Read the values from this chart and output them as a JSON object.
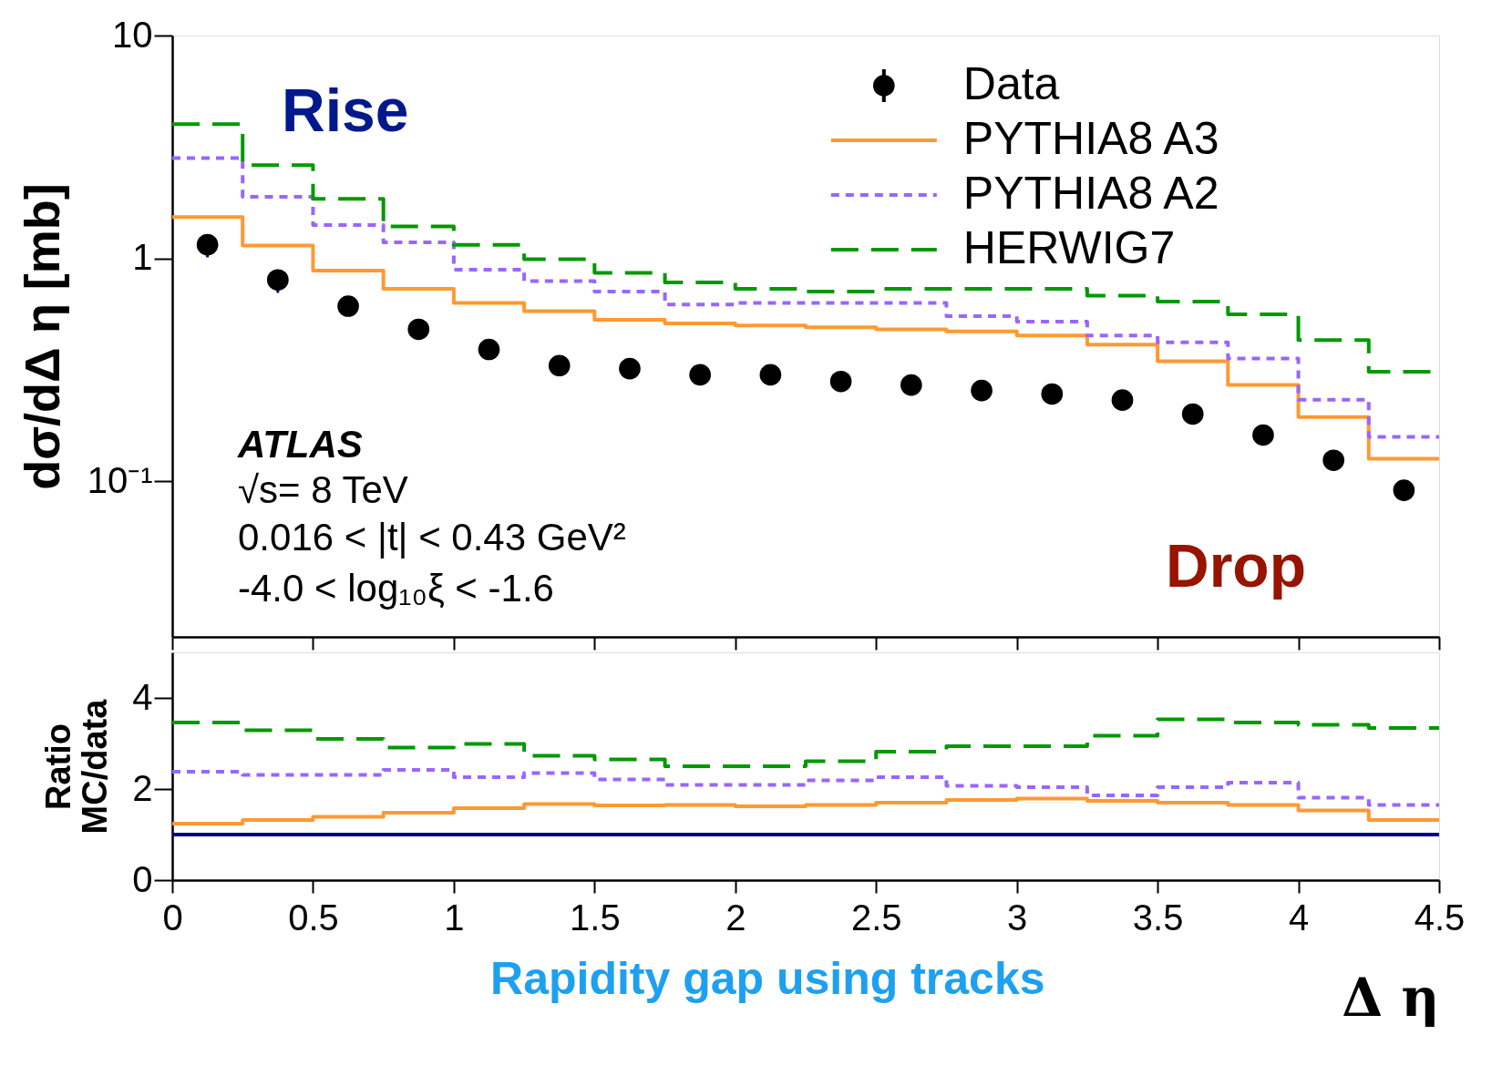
{
  "chart_data": [
    {
      "type": "step",
      "ylabel": "dσ/dΔ η [mb]",
      "log": true,
      "grid": false,
      "legend": "top right",
      "tick_labels": "y",
      "xlim": [
        0,
        4.5
      ],
      "xticks": [
        0,
        0.5,
        1,
        1.5,
        2,
        2.5,
        3,
        3.5,
        4,
        4.5
      ],
      "ylim": [
        0.02,
        10
      ],
      "yticks": [
        {
          "value": 0.1,
          "label": "10⁻¹"
        },
        1,
        10
      ],
      "annotations": [
        "Rise",
        "ATLAS",
        "√s= 8 TeV",
        "0.016 < |t| < 0.43 GeV²",
        "-4.0 < log₁₀ξ < -1.6",
        "Drop"
      ],
      "series": [
        {
          "name": "Data",
          "type": "scatter",
          "marker": "circle",
          "color": "#000000",
          "x": [
            0.125,
            0.375,
            0.625,
            0.875,
            1.125,
            1.375,
            1.625,
            1.875,
            2.125,
            2.375,
            2.625,
            2.875,
            3.125,
            3.375,
            3.625,
            3.875,
            4.125,
            4.375
          ],
          "values": [
            1.15,
            0.8,
            0.61,
            0.48,
            0.39,
            0.33,
            0.32,
            0.3,
            0.3,
            0.28,
            0.27,
            0.255,
            0.246,
            0.231,
            0.2,
            0.161,
            0.124,
            0.091
          ],
          "errors": [
            [
              1.01,
              1.28
            ],
            [
              0.7,
              0.89
            ],
            null,
            null,
            null,
            null,
            null,
            null,
            null,
            null,
            null,
            null,
            null,
            null,
            null,
            null,
            null,
            null
          ]
        },
        {
          "name": "PYTHIA8 A3",
          "type": "histogram",
          "color": "#ff9933",
          "line_style": "solid",
          "bins": [
            0,
            0.25,
            0.5,
            0.75,
            1,
            1.25,
            1.5,
            1.75,
            2,
            2.25,
            2.5,
            2.75,
            3,
            3.25,
            3.5,
            3.75,
            4,
            4.25,
            4.5
          ],
          "values": [
            1.53,
            1.14,
            0.88,
            0.73,
            0.63,
            0.58,
            0.53,
            0.51,
            0.5,
            0.49,
            0.48,
            0.47,
            0.45,
            0.41,
            0.345,
            0.27,
            0.194,
            0.126
          ]
        },
        {
          "name": "PYTHIA8 A2",
          "type": "histogram",
          "color": "#9966ff",
          "line_style": "dotted",
          "bins": [
            0,
            0.25,
            0.5,
            0.75,
            1,
            1.25,
            1.5,
            1.75,
            2,
            2.25,
            2.5,
            2.75,
            3,
            3.25,
            3.5,
            3.75,
            4,
            4.25,
            4.5
          ],
          "values": [
            2.82,
            1.89,
            1.41,
            1.18,
            0.89,
            0.79,
            0.71,
            0.62,
            0.63,
            0.63,
            0.63,
            0.55,
            0.52,
            0.45,
            0.42,
            0.355,
            0.232,
            0.158
          ]
        },
        {
          "name": "HERWIG7",
          "type": "histogram",
          "color": "#009900",
          "line_style": "dashed",
          "bins": [
            0,
            0.25,
            0.5,
            0.75,
            1,
            1.25,
            1.5,
            1.75,
            2,
            2.25,
            2.5,
            2.75,
            3,
            3.25,
            3.5,
            3.75,
            4,
            4.25,
            4.5
          ],
          "values": [
            4.0,
            2.62,
            1.85,
            1.39,
            1.15,
            0.99,
            0.86,
            0.78,
            0.73,
            0.71,
            0.73,
            0.73,
            0.73,
            0.68,
            0.64,
            0.56,
            0.43,
            0.31
          ]
        }
      ]
    },
    {
      "type": "histogram",
      "ylabel": "Ratio\nMC/data",
      "xlabel": "Δ η",
      "grid": false,
      "legend": false,
      "xlim": [
        0,
        4.5
      ],
      "xticks": [
        0,
        0.5,
        1,
        1.5,
        2,
        2.5,
        3,
        3.5,
        4,
        4.5
      ],
      "ylim": [
        0,
        5
      ],
      "yticks": [
        0,
        2,
        4
      ],
      "annotations": [
        "Rapidity gap using tracks"
      ],
      "bins": [
        0,
        0.25,
        0.5,
        0.75,
        1,
        1.25,
        1.5,
        1.75,
        2,
        2.25,
        2.5,
        2.75,
        3,
        3.25,
        3.5,
        3.75,
        4,
        4.25,
        4.5
      ],
      "series": [
        {
          "color": "#000080",
          "line_style": "solid",
          "values": [
            1,
            1,
            1,
            1,
            1,
            1,
            1,
            1,
            1,
            1,
            1,
            1,
            1,
            1,
            1,
            1,
            1,
            1
          ]
        },
        {
          "color": "#ff9933",
          "line_style": "solid",
          "values": [
            1.24,
            1.32,
            1.39,
            1.48,
            1.58,
            1.67,
            1.64,
            1.65,
            1.62,
            1.65,
            1.7,
            1.76,
            1.79,
            1.74,
            1.7,
            1.65,
            1.53,
            1.32
          ]
        },
        {
          "color": "#9966ff",
          "line_style": "dotted",
          "values": [
            2.38,
            2.31,
            2.31,
            2.42,
            2.26,
            2.35,
            2.21,
            2.09,
            2.09,
            2.19,
            2.26,
            2.07,
            2.04,
            1.86,
            2.04,
            2.14,
            1.81,
            1.65
          ]
        },
        {
          "color": "#009900",
          "line_style": "dashed",
          "values": [
            3.46,
            3.29,
            3.1,
            2.91,
            2.99,
            2.73,
            2.65,
            2.5,
            2.5,
            2.61,
            2.82,
            2.94,
            2.94,
            3.17,
            3.53,
            3.46,
            3.41,
            3.34
          ]
        }
      ]
    }
  ]
}
